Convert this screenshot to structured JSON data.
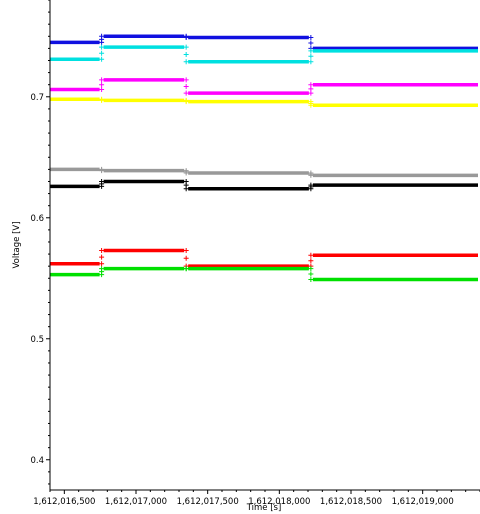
{
  "chart_data": {
    "type": "scatter",
    "title": "",
    "xlabel": "Time [s]",
    "ylabel": "Voltage [V]",
    "xlim": [
      1612016400,
      1612019400
    ],
    "ylim": [
      0.375,
      0.78
    ],
    "grid": false,
    "x_ticks": [
      1612016500,
      1612017000,
      1612017500,
      1612018000,
      1612018500,
      1612019000
    ],
    "x_tick_labels": [
      "1,612,016,500",
      "1,612,017,000",
      "1,612,017,500",
      "1,612,018,000",
      "1,612,018,500",
      "1,612,019,000"
    ],
    "y_ticks": [
      0.4,
      0.5,
      0.6,
      0.7
    ],
    "y_tick_labels": [
      "0.4",
      "0.5",
      "0.6",
      "0.7"
    ],
    "breakpoints": [
      1612016400,
      1612016760,
      1612017350,
      1612018220,
      1612019400
    ],
    "series": [
      {
        "color": "#1010e0",
        "levels": [
          0.745,
          0.75,
          0.749,
          0.74
        ]
      },
      {
        "color": "#00e0e0",
        "levels": [
          0.731,
          0.741,
          0.729,
          0.738
        ]
      },
      {
        "color": "#ff00ff",
        "levels": [
          0.706,
          0.714,
          0.703,
          0.71
        ]
      },
      {
        "color": "#ffff00",
        "levels": [
          0.698,
          0.697,
          0.696,
          0.693
        ]
      },
      {
        "color": "#999999",
        "levels": [
          0.64,
          0.639,
          0.637,
          0.635
        ]
      },
      {
        "color": "#000000",
        "levels": [
          0.626,
          0.63,
          0.624,
          0.627
        ]
      },
      {
        "color": "#ff0000",
        "levels": [
          0.562,
          0.573,
          0.56,
          0.569
        ]
      },
      {
        "color": "#00e000",
        "levels": [
          0.553,
          0.558,
          0.558,
          0.549
        ]
      }
    ]
  }
}
